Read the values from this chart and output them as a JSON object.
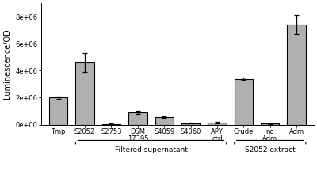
{
  "categories": [
    "Tmp",
    "S2052",
    "S2753",
    "DSM\n17395",
    "S4059",
    "S4060",
    "APY\nctrl",
    "Crude",
    "no\nAdm",
    "Adm"
  ],
  "values": [
    2000000,
    4600000,
    50000,
    900000,
    550000,
    100000,
    150000,
    3400000,
    80000,
    7400000
  ],
  "errors": [
    80000,
    700000,
    30000,
    130000,
    80000,
    40000,
    50000,
    80000,
    30000,
    700000
  ],
  "bar_color": "#b0b0b0",
  "bar_edgecolor": "#000000",
  "ylabel": "Luminescence/OD",
  "ylim": [
    0,
    9000000
  ],
  "yticks": [
    0,
    2000000,
    4000000,
    6000000,
    8000000
  ],
  "ytick_labels": [
    "0e+00",
    "2e+06",
    "4e+06",
    "6e+06",
    "8e+06"
  ],
  "group1_label": "Filtered supernatant",
  "group2_label": "S2052 extract",
  "background_color": "#ffffff",
  "bar_width": 0.7,
  "figsize": [
    4.0,
    2.25
  ],
  "dpi": 100
}
